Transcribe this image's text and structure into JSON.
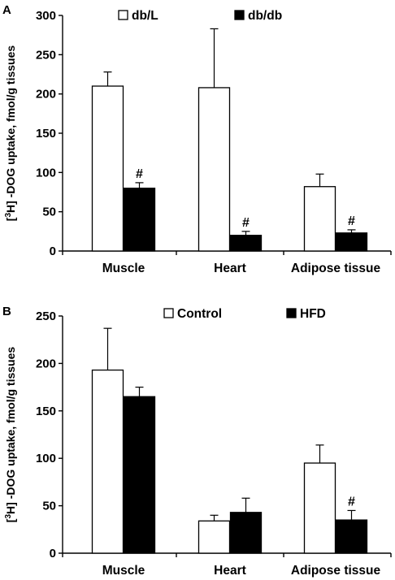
{
  "chart_data": [
    {
      "panel": "A",
      "type": "bar",
      "categories": [
        "Muscle",
        "Heart",
        "Adipose tissue"
      ],
      "series": [
        {
          "name": "db/L",
          "values": [
            210,
            208,
            82
          ],
          "errors": [
            18,
            75,
            16
          ],
          "fill": "#ffffff"
        },
        {
          "name": "db/db",
          "values": [
            80,
            20,
            23
          ],
          "errors": [
            7,
            5,
            4
          ],
          "fill": "#000000",
          "significance": [
            "#",
            "#",
            "#"
          ]
        }
      ],
      "ylabel_pre": "[",
      "ylabel_sup": "3",
      "ylabel_post": "H] -DOG uptake, fmol/g tissues",
      "ylim": [
        0,
        300
      ],
      "yticks": [
        "0",
        "50",
        "100",
        "150",
        "200",
        "250",
        "300"
      ],
      "legend_position": "top"
    },
    {
      "panel": "B",
      "type": "bar",
      "categories": [
        "Muscle",
        "Heart",
        "Adipose tissue"
      ],
      "series": [
        {
          "name": "Control",
          "values": [
            193,
            34,
            95
          ],
          "errors": [
            44,
            6,
            19
          ],
          "fill": "#ffffff"
        },
        {
          "name": "HFD",
          "values": [
            165,
            43,
            35
          ],
          "errors": [
            10,
            15,
            10
          ],
          "fill": "#000000",
          "significance": [
            "",
            "",
            "#"
          ]
        }
      ],
      "ylabel_pre": "[",
      "ylabel_sup": "3",
      "ylabel_post": "H] -DOG uptake, fmol/g tissues",
      "ylim": [
        0,
        250
      ],
      "yticks": [
        "0",
        "50",
        "100",
        "150",
        "200",
        "250"
      ],
      "legend_position": "top"
    }
  ]
}
